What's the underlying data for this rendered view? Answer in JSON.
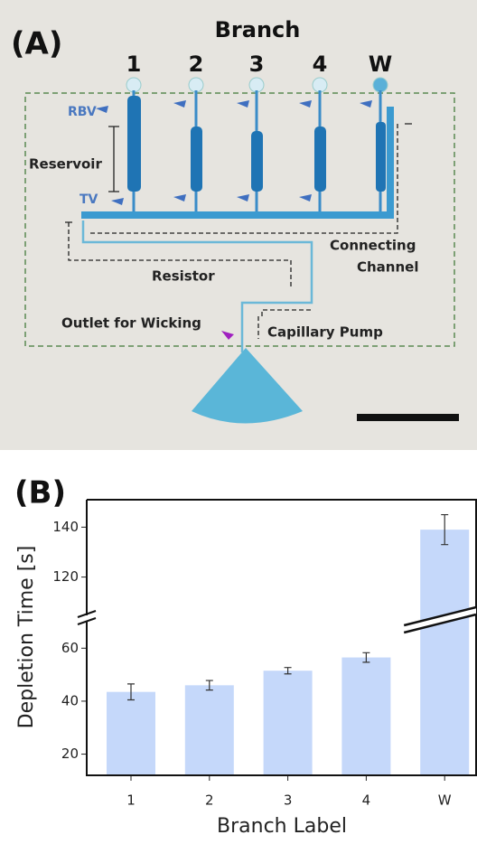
{
  "figure": {
    "panel_label": "(A)",
    "title": "Branch",
    "branches": [
      "1",
      "2",
      "3",
      "4",
      "W"
    ],
    "annotations": {
      "rbv": "RBV",
      "reservoir": "Reservoir",
      "tv": "TV",
      "connecting": "Connecting",
      "channel": "Channel",
      "resistor": "Resistor",
      "outlet": "Outlet for Wicking",
      "pump": "Capillary Pump"
    }
  },
  "chart_data": {
    "type": "bar",
    "panel_label": "(B)",
    "x_label": "Branch Label",
    "y_label": "Depletion Time [s]",
    "categories": [
      "1",
      "2",
      "3",
      "4",
      "W"
    ],
    "series": [
      {
        "color": "#c5d8fa",
        "values": [
          43.5,
          46,
          51.5,
          56.5,
          139
        ],
        "errors": [
          3,
          1.8,
          1.2,
          1.8,
          6
        ]
      }
    ],
    "broken_axis": true,
    "segments": [
      {
        "ylim": [
          12,
          70
        ],
        "yticks": [
          20,
          40,
          60
        ]
      },
      {
        "ylim": [
          105,
          151
        ],
        "yticks": [
          120,
          140
        ]
      }
    ]
  }
}
